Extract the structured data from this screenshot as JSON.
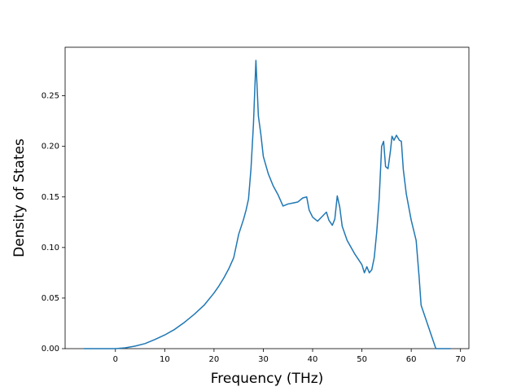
{
  "chart_data": {
    "type": "line",
    "xlabel": "Frequency (THz)",
    "ylabel": "Density of States",
    "x": [
      -6.4,
      -3,
      0,
      2,
      4,
      6,
      8,
      10,
      12,
      14,
      16,
      18,
      20,
      21,
      22,
      23,
      24,
      25,
      26,
      26.5,
      27,
      27.5,
      28,
      28.5,
      29,
      29.5,
      30,
      31,
      32,
      33,
      34,
      35,
      36,
      37,
      38,
      38.8,
      39.3,
      40,
      41,
      42,
      42.8,
      43.3,
      44,
      44.5,
      45,
      45.5,
      46,
      47,
      48.5,
      50,
      50.5,
      51,
      51.5,
      52,
      52.5,
      53,
      53.5,
      54,
      54.4,
      54.8,
      55.3,
      55.8,
      56.1,
      56.5,
      57,
      57.6,
      58,
      58.4,
      59,
      60,
      61,
      61.6,
      62,
      65,
      68
    ],
    "series": [
      {
        "name": "DOS",
        "color": "#1f77b4",
        "values": [
          0,
          0,
          0,
          0.0008,
          0.0025,
          0.005,
          0.009,
          0.0135,
          0.019,
          0.026,
          0.034,
          0.043,
          0.055,
          0.062,
          0.07,
          0.079,
          0.09,
          0.113,
          0.128,
          0.137,
          0.148,
          0.178,
          0.222,
          0.285,
          0.23,
          0.212,
          0.19,
          0.173,
          0.161,
          0.152,
          0.141,
          0.143,
          0.144,
          0.145,
          0.149,
          0.15,
          0.137,
          0.13,
          0.126,
          0.131,
          0.135,
          0.127,
          0.122,
          0.128,
          0.151,
          0.14,
          0.121,
          0.107,
          0.094,
          0.083,
          0.075,
          0.081,
          0.075,
          0.078,
          0.09,
          0.115,
          0.148,
          0.2,
          0.205,
          0.18,
          0.178,
          0.196,
          0.21,
          0.206,
          0.211,
          0.206,
          0.205,
          0.177,
          0.153,
          0.127,
          0.107,
          0.071,
          0.043,
          0,
          0
        ]
      }
    ],
    "xlim": [
      -10.2,
      71.7
    ],
    "ylim": [
      0,
      0.298
    ],
    "xticks": [
      0,
      10,
      20,
      30,
      40,
      50,
      60,
      70
    ],
    "yticks": [
      {
        "value": 0,
        "label": "0.00"
      },
      {
        "value": 0.05,
        "label": "0.05"
      },
      {
        "value": 0.1,
        "label": "0.10"
      },
      {
        "value": 0.15,
        "label": "0.15"
      },
      {
        "value": 0.2,
        "label": "0.20"
      },
      {
        "value": 0.25,
        "label": "0.25"
      }
    ]
  }
}
